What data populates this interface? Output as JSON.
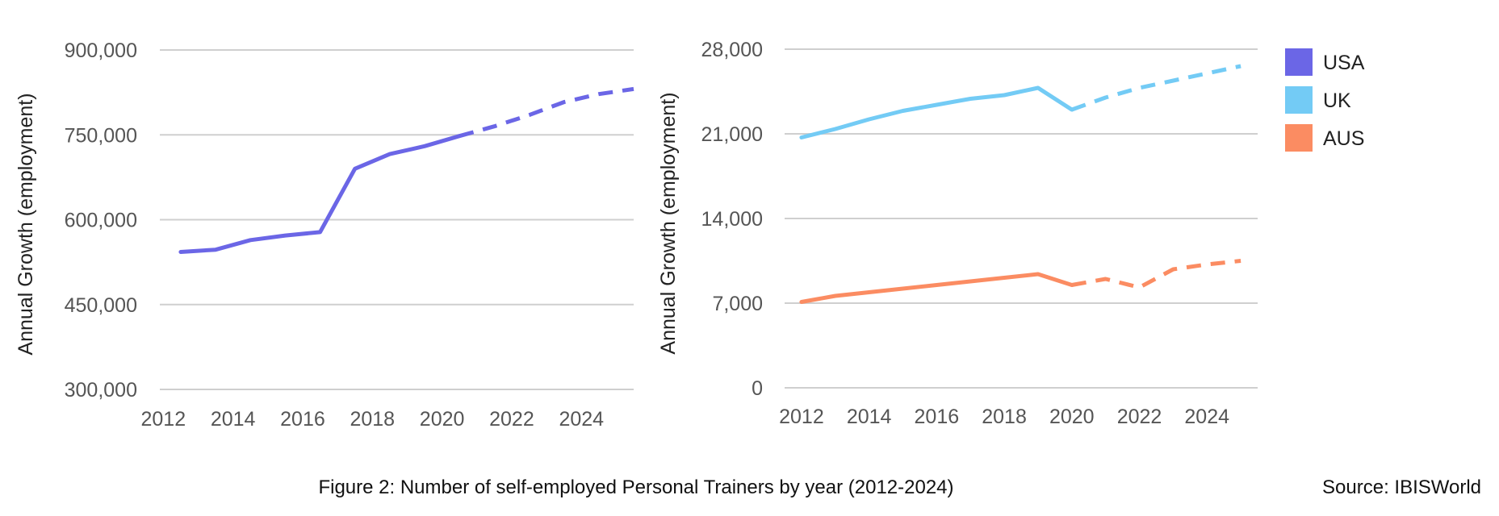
{
  "figure": {
    "caption": "Figure 2: Number of self-employed Personal Trainers by year (2012-2024)",
    "source": "Source: IBISWorld"
  },
  "legend": [
    {
      "label": "USA",
      "color": "#6b66e6"
    },
    {
      "label": "UK",
      "color": "#73cbf5"
    },
    {
      "label": "AUS",
      "color": "#fb8c62"
    }
  ],
  "chart_data": [
    {
      "type": "line",
      "ylabel": "Annual Growth (employment)",
      "ylim": [
        300000,
        900000
      ],
      "yticks": [
        300000,
        450000,
        600000,
        750000,
        900000
      ],
      "ytick_labels": [
        "300,000",
        "450,000",
        "600,000",
        "750,000",
        "900,000"
      ],
      "xlim": [
        2011.9,
        2025.5
      ],
      "xticks": [
        2012,
        2014,
        2016,
        2018,
        2020,
        2022,
        2024
      ],
      "xtick_labels": [
        "2012",
        "2014",
        "2016",
        "2018",
        "2020",
        "2022",
        "2024"
      ],
      "grid": true,
      "series": [
        {
          "color": "#6b66e6",
          "x": [
            2012.5,
            2013.5,
            2014.5,
            2015.5,
            2016.5,
            2017.5,
            2018.5,
            2019.5,
            2020.5
          ],
          "values": [
            543000,
            547000,
            564000,
            572000,
            578000,
            690000,
            716000,
            730000,
            748000
          ],
          "forecast_x": [
            2020.5,
            2021.5,
            2022.5,
            2023.5,
            2024.5,
            2025.5
          ],
          "forecast_values": [
            748000,
            765000,
            785000,
            808000,
            822000,
            831000
          ]
        }
      ]
    },
    {
      "type": "line",
      "ylabel": "Annual Growth (employment)",
      "ylim": [
        0,
        28000
      ],
      "yticks": [
        0,
        7000,
        14000,
        21000,
        28000
      ],
      "ytick_labels": [
        "0",
        "7,000",
        "14,000",
        "21,000",
        "28,000"
      ],
      "xlim": [
        2011.5,
        2025.5
      ],
      "xticks": [
        2012,
        2014,
        2016,
        2018,
        2020,
        2022,
        2024
      ],
      "xtick_labels": [
        "2012",
        "2014",
        "2016",
        "2018",
        "2020",
        "2022",
        "2024"
      ],
      "grid": true,
      "series": [
        {
          "name": "UK",
          "color": "#73cbf5",
          "x": [
            2012,
            2013,
            2014,
            2015,
            2016,
            2017,
            2018,
            2019,
            2020
          ],
          "values": [
            20700,
            21400,
            22200,
            22900,
            23400,
            23900,
            24200,
            24800,
            23000
          ],
          "forecast_x": [
            2020,
            2021,
            2022,
            2023,
            2024,
            2025
          ],
          "forecast_values": [
            23000,
            24000,
            24800,
            25400,
            26000,
            26600
          ]
        },
        {
          "name": "AUS",
          "color": "#fb8c62",
          "x": [
            2012,
            2013,
            2014,
            2015,
            2016,
            2017,
            2018,
            2019,
            2020
          ],
          "values": [
            7100,
            7600,
            7900,
            8200,
            8500,
            8800,
            9100,
            9400,
            8500
          ],
          "forecast_x": [
            2020,
            2021,
            2022,
            2023,
            2024,
            2025
          ],
          "forecast_values": [
            8500,
            9000,
            8300,
            9800,
            10200,
            10500
          ]
        }
      ]
    }
  ]
}
